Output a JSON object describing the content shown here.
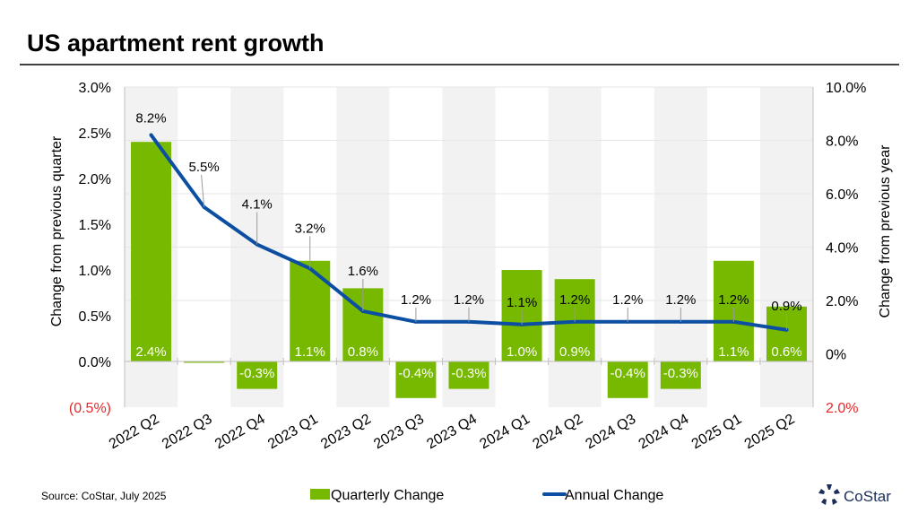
{
  "title": "US apartment rent growth",
  "source": "Source: CoStar, July 2025",
  "logo_text": "CoStar",
  "colors": {
    "bar": "#76b900",
    "line": "#0b4ea2",
    "band": "#f2f2f2",
    "negative_tick": "#e8272a"
  },
  "chart_data": {
    "type": "bar+line",
    "categories": [
      "2022 Q2",
      "2022 Q3",
      "2022 Q4",
      "2023 Q1",
      "2023 Q2",
      "2023 Q3",
      "2023 Q4",
      "2024 Q1",
      "2024 Q2",
      "2024 Q3",
      "2024 Q4",
      "2025 Q1",
      "2025 Q2"
    ],
    "series": [
      {
        "name": "Quarterly Change",
        "type": "bar",
        "axis": "left",
        "values": [
          2.4,
          0.0,
          -0.3,
          1.1,
          0.8,
          -0.4,
          -0.3,
          1.0,
          0.9,
          -0.4,
          -0.3,
          1.1,
          0.6
        ],
        "labels": [
          "2.4%",
          "",
          "-0.3%",
          "1.1%",
          "0.8%",
          "-0.4%",
          "-0.3%",
          "1.0%",
          "0.9%",
          "-0.4%",
          "-0.3%",
          "1.1%",
          "0.6%"
        ]
      },
      {
        "name": "Annual Change",
        "type": "line",
        "axis": "right",
        "values": [
          8.2,
          5.5,
          4.1,
          3.2,
          1.6,
          1.2,
          1.2,
          1.1,
          1.2,
          1.2,
          1.2,
          1.2,
          0.9
        ],
        "labels": [
          "8.2%",
          "5.5%",
          "4.1%",
          "3.2%",
          "1.6%",
          "1.2%",
          "1.2%",
          "1.1%",
          "1.2%",
          "1.2%",
          "1.2%",
          "1.2%",
          "0.9%"
        ]
      }
    ],
    "ylabel_left": "Change from previous quarter",
    "ylabel_right": "Change from previous year",
    "ylim_left": [
      -0.5,
      3.0
    ],
    "ylim_right": [
      -2.0,
      10.0
    ],
    "yticks_left": [
      {
        "v": 3.0,
        "label": "3.0%"
      },
      {
        "v": 2.5,
        "label": "2.5%"
      },
      {
        "v": 2.0,
        "label": "2.0%"
      },
      {
        "v": 1.5,
        "label": "1.5%"
      },
      {
        "v": 1.0,
        "label": "1.0%"
      },
      {
        "v": 0.5,
        "label": "0.5%"
      },
      {
        "v": 0.0,
        "label": "0.0%"
      },
      {
        "v": -0.5,
        "label": "(0.5%)",
        "negative": true
      }
    ],
    "yticks_right": [
      {
        "v": 10,
        "label": "10.0%"
      },
      {
        "v": 8,
        "label": "8.0%"
      },
      {
        "v": 6,
        "label": "6.0%"
      },
      {
        "v": 4,
        "label": "4.0%"
      },
      {
        "v": 2,
        "label": "2.0%"
      },
      {
        "v": 0,
        "label": "0%"
      },
      {
        "v": -2,
        "label": "2.0%",
        "negative": true
      }
    ],
    "grid": true,
    "alternating_bands": true,
    "legend_position": "bottom"
  }
}
